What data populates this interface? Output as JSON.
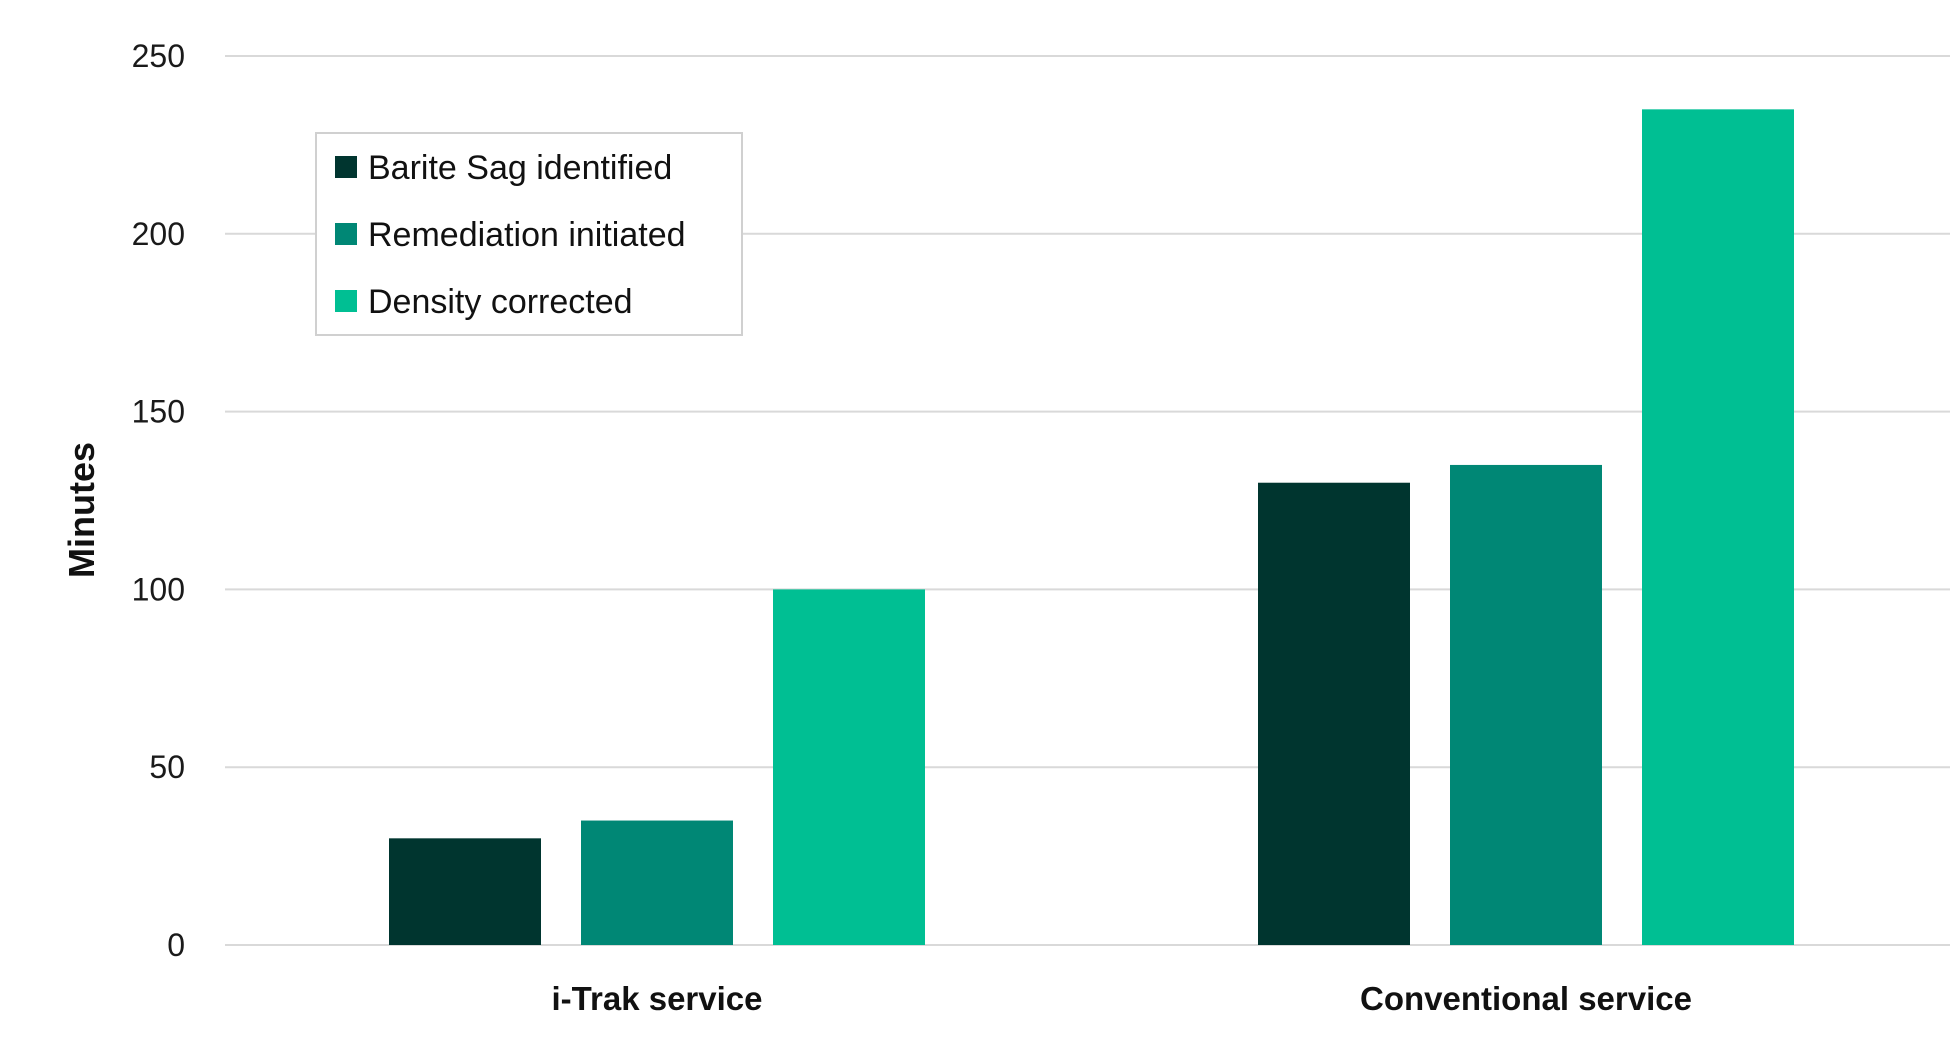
{
  "chart_data": {
    "type": "bar",
    "title": "",
    "xlabel": "",
    "ylabel": "Minutes",
    "ylim": [
      0,
      250
    ],
    "yticks": [
      0,
      50,
      100,
      150,
      200,
      250
    ],
    "grid": true,
    "legend_position": "top-left",
    "categories": [
      "i-Trak service",
      "Conventional service"
    ],
    "series": [
      {
        "name": "Barite Sag identified",
        "color": "#00352F",
        "values": [
          30,
          130
        ]
      },
      {
        "name": "Remediation initiated",
        "color": "#008775",
        "values": [
          35,
          135
        ]
      },
      {
        "name": "Density corrected",
        "color": "#00BF93",
        "values": [
          100,
          235
        ]
      }
    ]
  }
}
